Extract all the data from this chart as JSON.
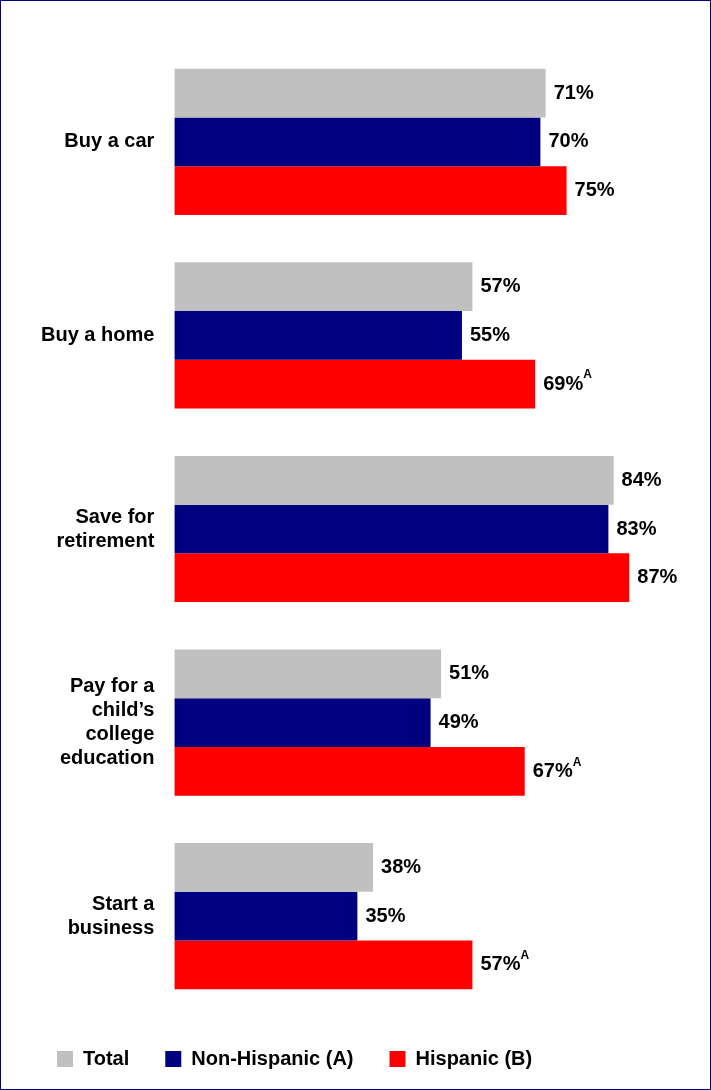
{
  "chart_data": {
    "type": "bar",
    "orientation": "horizontal",
    "categories": [
      "Buy a car",
      "Buy a home",
      "Save for retirement",
      "Pay for a child’s college education",
      "Start a business"
    ],
    "series": [
      {
        "name": "Total",
        "color": "#c0c0c0",
        "values": [
          71,
          57,
          84,
          51,
          38
        ],
        "value_labels": [
          "71%",
          "57%",
          "84%",
          "51%",
          "38%"
        ]
      },
      {
        "name": "Non-Hispanic (A)",
        "color": "#000080",
        "values": [
          70,
          55,
          83,
          49,
          35
        ],
        "value_labels": [
          "70%",
          "55%",
          "83%",
          "49%",
          "35%"
        ]
      },
      {
        "name": "Hispanic (B)",
        "color": "#ff0000",
        "values": [
          75,
          69,
          87,
          67,
          57
        ],
        "value_labels": [
          "75%",
          "69%$^{A}$",
          "87%",
          "67%$^{A}$",
          "57%$^{A}$"
        ]
      }
    ],
    "tick_labels": "y",
    "grid": false,
    "legend": "bottom"
  }
}
